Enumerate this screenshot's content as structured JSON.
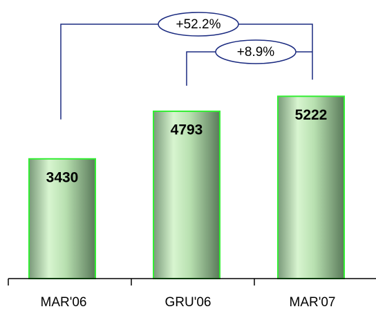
{
  "chart_data": {
    "type": "bar",
    "categories": [
      "MAR'06",
      "GRU'06",
      "MAR'07"
    ],
    "values": [
      3430,
      4793,
      5222
    ],
    "color": "#7fd97f",
    "ylim": [
      0,
      6000
    ],
    "annotations": [
      "+52.2%",
      "+8.9%"
    ]
  }
}
